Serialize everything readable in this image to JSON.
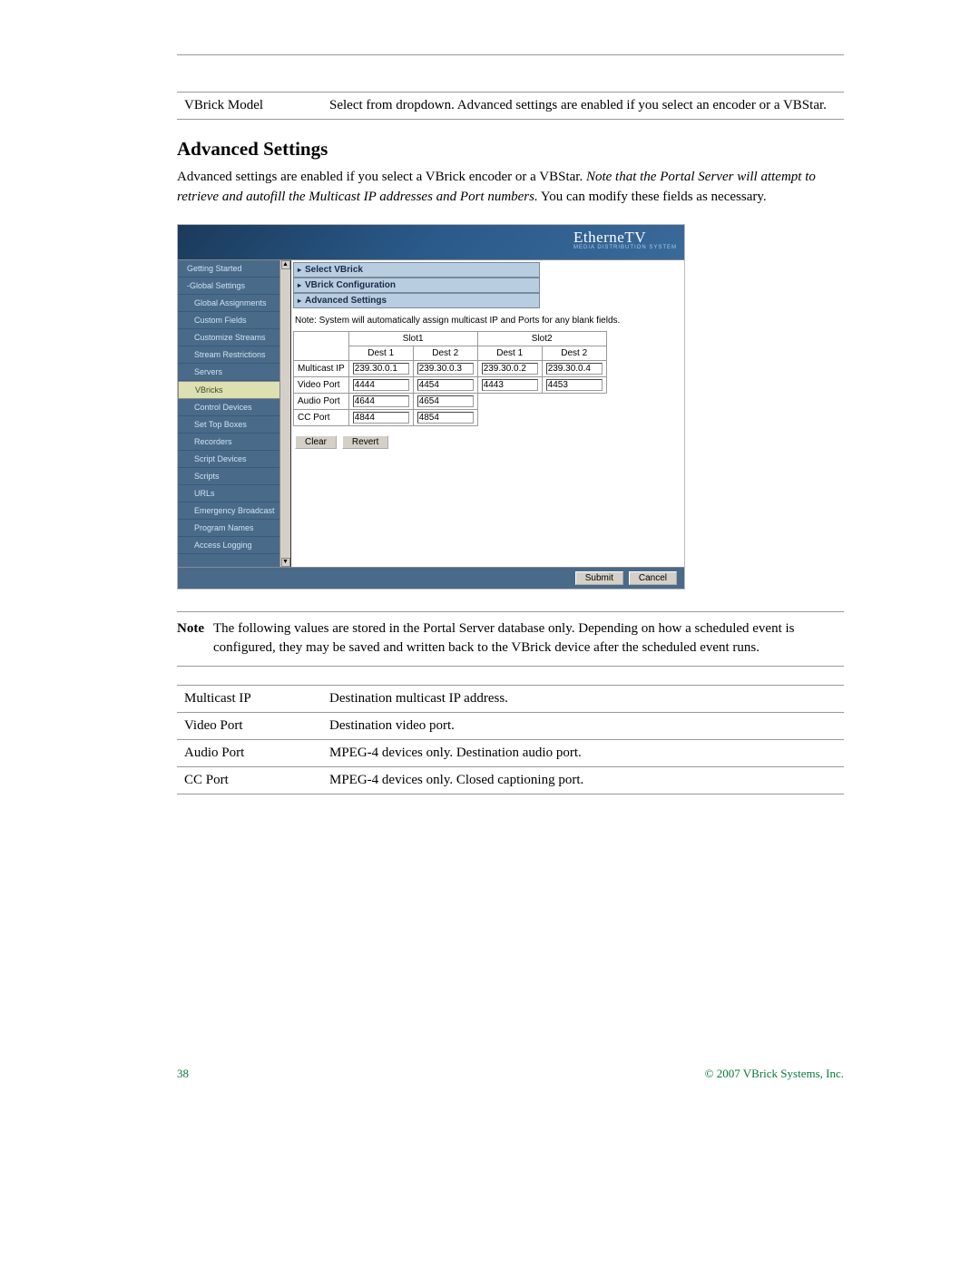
{
  "table1": {
    "row1_label": "VBrick Model",
    "row1_desc": "Select from dropdown. Advanced settings are enabled if you select an encoder or a VBStar."
  },
  "heading": "Advanced Settings",
  "paragraph_pre": "Advanced settings are enabled if you select a VBrick encoder or a VBStar. ",
  "paragraph_italic": "Note that the Portal Server will attempt to retrieve and autofill the Multicast IP addresses and Port numbers.",
  "paragraph_post": " You can modify these fields as necessary.",
  "screenshot": {
    "logo": "EtherneTV",
    "logo_sub": "MEDIA DISTRIBUTION SYSTEM",
    "sidebar": [
      {
        "label": "Getting Started",
        "sub": false
      },
      {
        "label": "-Global Settings",
        "sub": false
      },
      {
        "label": "Global Assignments",
        "sub": true
      },
      {
        "label": "Custom Fields",
        "sub": true
      },
      {
        "label": "Customize Streams",
        "sub": true
      },
      {
        "label": "Stream Restrictions",
        "sub": true
      },
      {
        "label": "Servers",
        "sub": true
      },
      {
        "label": "VBricks",
        "sub": true,
        "selected": true
      },
      {
        "label": "Control Devices",
        "sub": true
      },
      {
        "label": "Set Top Boxes",
        "sub": true
      },
      {
        "label": "Recorders",
        "sub": true
      },
      {
        "label": "Script Devices",
        "sub": true
      },
      {
        "label": "Scripts",
        "sub": true
      },
      {
        "label": "URLs",
        "sub": true
      },
      {
        "label": "Emergency Broadcast",
        "sub": true
      },
      {
        "label": "Program Names",
        "sub": true
      },
      {
        "label": "Access Logging",
        "sub": true
      }
    ],
    "accordion": [
      "Select VBrick",
      "VBrick Configuration",
      "Advanced Settings"
    ],
    "note": "Note: System will automatically assign multicast IP and Ports for any blank fields.",
    "columns": {
      "slot1": "Slot1",
      "slot2": "Slot2",
      "dest1": "Dest 1",
      "dest2": "Dest 2"
    },
    "rows": [
      {
        "label": "Multicast IP",
        "s1d1": "239.30.0.1",
        "s1d2": "239.30.0.3",
        "s2d1": "239.30.0.2",
        "s2d2": "239.30.0.4"
      },
      {
        "label": "Video Port",
        "s1d1": "4444",
        "s1d2": "4454",
        "s2d1": "4443",
        "s2d2": "4453"
      },
      {
        "label": "Audio Port",
        "s1d1": "4644",
        "s1d2": "4654",
        "s2d1": "",
        "s2d2": ""
      },
      {
        "label": "CC Port",
        "s1d1": "4844",
        "s1d2": "4854",
        "s2d1": "",
        "s2d2": ""
      }
    ],
    "buttons": {
      "clear": "Clear",
      "revert": "Revert",
      "submit": "Submit",
      "cancel": "Cancel"
    }
  },
  "note_label": "Note",
  "note_body": "The following values are stored in the Portal Server database only. Depending on how a scheduled event is configured, they may be saved and written back to the VBrick device after the scheduled event runs.",
  "table2": {
    "rows": [
      {
        "k": "Multicast IP",
        "v": "Destination multicast IP address."
      },
      {
        "k": "Video Port",
        "v": "Destination video port."
      },
      {
        "k": "Audio Port",
        "v": "MPEG-4 devices only. Destination audio port."
      },
      {
        "k": "CC Port",
        "v": "MPEG-4 devices only. Closed captioning port."
      }
    ]
  },
  "footer": {
    "page": "38",
    "copyright": "© 2007 VBrick Systems, Inc."
  },
  "colors": {
    "sidebar_bg": "#4a6a8a",
    "acc_bg": "#b8cde0",
    "selected_bg": "#dde0b0",
    "green": "#0a7a3a"
  }
}
